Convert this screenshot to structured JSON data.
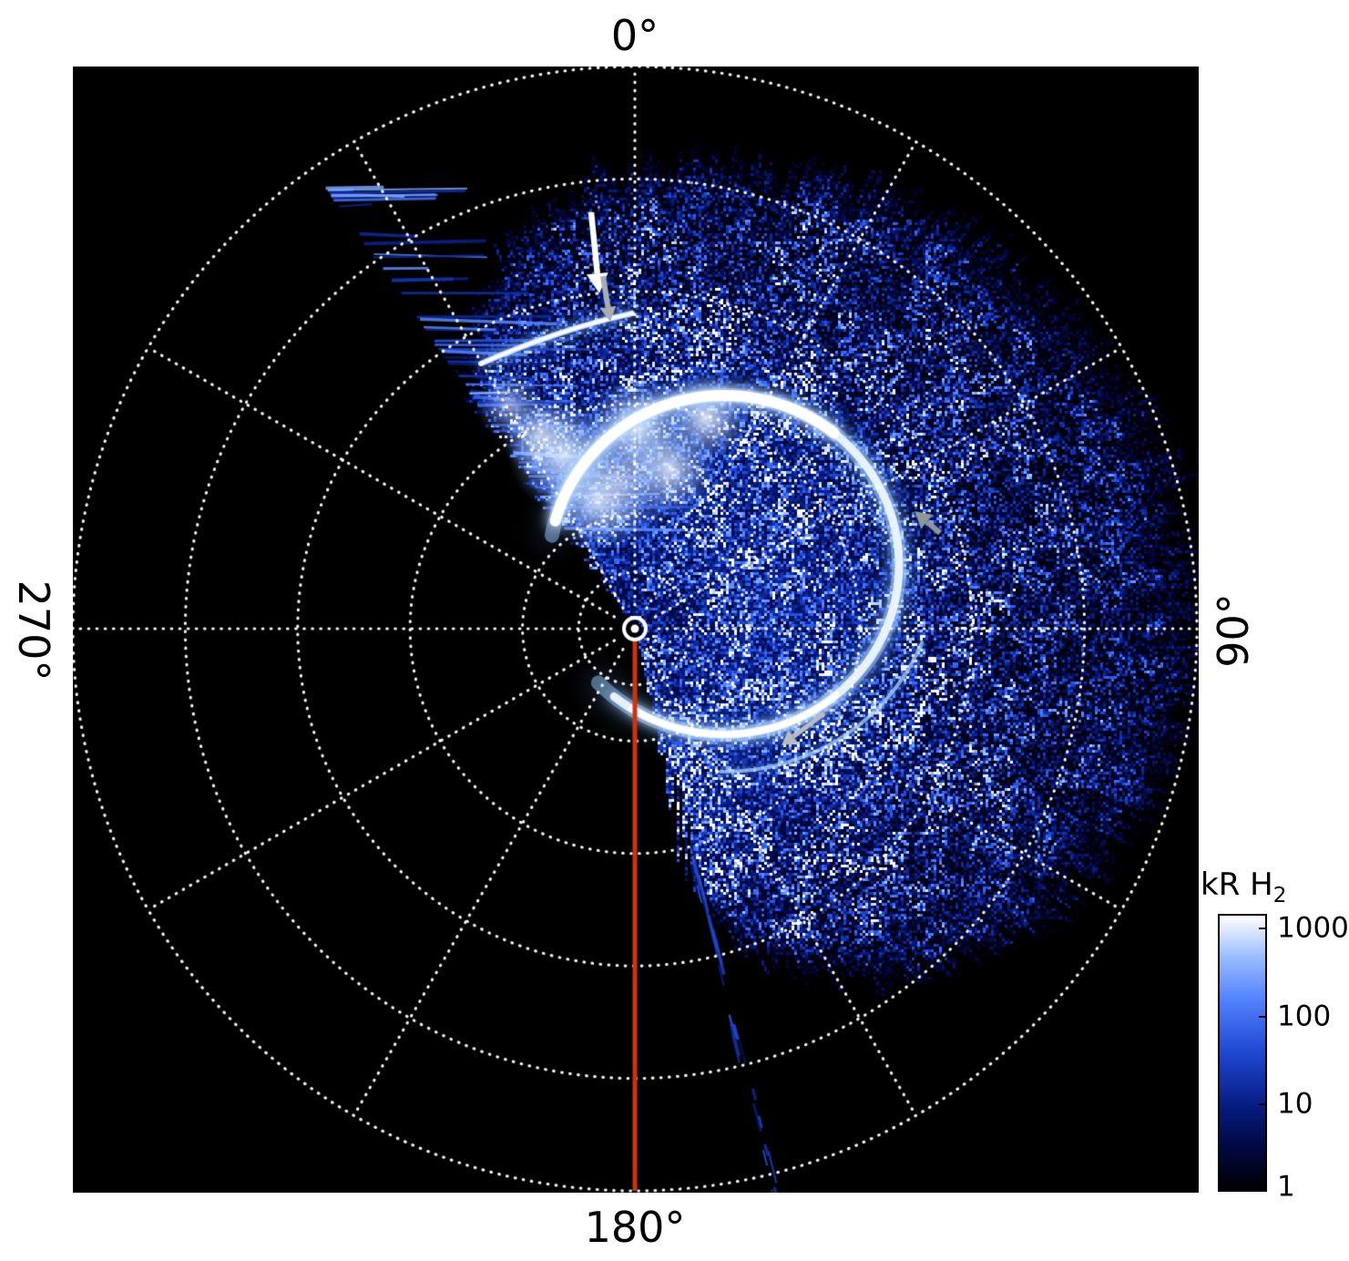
{
  "figure": {
    "angle_labels": {
      "top": "0°",
      "right": "90°",
      "bottom": "180°",
      "left": "270°"
    },
    "colorbar": {
      "title_main": "kR H",
      "title_sub": "2",
      "ticks": [
        "1000",
        "100",
        "10",
        "1"
      ],
      "scale": "log"
    },
    "colors": {
      "background": "#ffffff",
      "plot_background": "#000000",
      "grid": "#ffffff",
      "meridian_line": "#cc3311",
      "arrow_white": "#ffffff",
      "arrow_gray": "#a8aeb2"
    }
  },
  "chart_data": {
    "type": "heatmap",
    "projection": "polar",
    "units": "kR H2",
    "title": "",
    "angular_tick_labels_deg": [
      0,
      90,
      180,
      270
    ],
    "angular_gridline_step_deg": 30,
    "radial_gridlines_fraction_of_outer": [
      0.1,
      0.2,
      0.4,
      0.6,
      0.8,
      1.0
    ],
    "angle_direction": "clockwise",
    "zero_location": "top",
    "colorbar_ticks": [
      1000,
      100,
      10,
      1
    ],
    "colorbar_scale": "log",
    "colormap": "black-to-blue-to-white",
    "data_coverage_azimuth_deg": [
      -35,
      167
    ],
    "features": [
      {
        "name": "main-emission-oval",
        "description": "bright auroral emission oval offset toward 90°, saturated (≈1000 kR) along its rim"
      },
      {
        "name": "bright-patch-upper-left",
        "description": "saturated diffuse emission patch between ~330° and 0° at mid radii"
      },
      {
        "name": "narrow-arc-near-0",
        "description": "thin bright arc near 0° indicated by white and gray arrows"
      },
      {
        "name": "secondary-arc-lower-right",
        "description": "fainter arc outside the main oval near 135°, indicated by gray arrow"
      },
      {
        "name": "background-speckle",
        "description": "noisy emission ~1-100 kR filling sector between ~325° and ~167°"
      },
      {
        "name": "meridian-line-180",
        "description": "solid red line from pole along the 180° meridian"
      },
      {
        "name": "pole-marker",
        "description": "white circled-dot marker at the pole (plot center)"
      }
    ],
    "annotations": [
      {
        "type": "arrow",
        "color": "white",
        "points_to": "narrow-arc-near-0"
      },
      {
        "type": "arrow",
        "color": "gray",
        "points_to": "narrow-arc-near-0"
      },
      {
        "type": "arrow",
        "color": "gray",
        "points_to": "main-emission-oval"
      },
      {
        "type": "arrow",
        "color": "gray",
        "points_to": "secondary-arc-lower-right"
      }
    ]
  }
}
